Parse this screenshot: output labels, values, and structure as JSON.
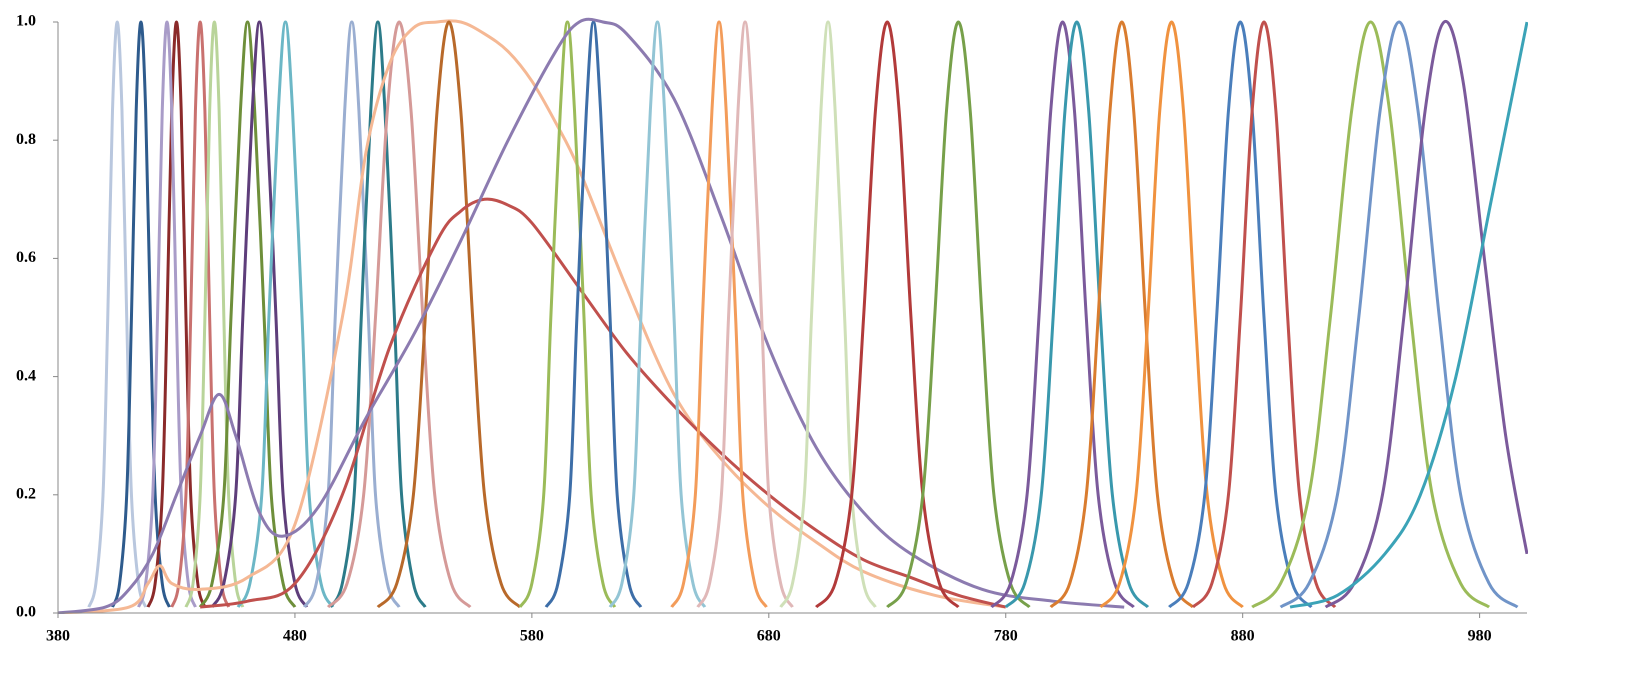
{
  "chart_data": {
    "type": "line",
    "xlim": [
      380,
      1000
    ],
    "ylim": [
      0,
      1
    ],
    "xticks": [
      380,
      480,
      580,
      680,
      780,
      880,
      980
    ],
    "yticks": [
      {
        "value": 0,
        "label": "0.0"
      },
      0.2,
      0.4,
      0.6,
      0.8,
      {
        "value": 1,
        "label": "1.0"
      }
    ],
    "series": [
      {
        "color": "#b9c7de",
        "x": [
          393,
          396,
          399,
          401,
          403,
          405,
          407,
          409,
          411,
          414,
          417
        ],
        "values": [
          0.01,
          0.05,
          0.2,
          0.5,
          0.85,
          1,
          0.85,
          0.5,
          0.2,
          0.05,
          0.01
        ]
      },
      {
        "color": "#2e5b8d",
        "x": [
          403,
          406,
          409,
          411,
          413,
          415,
          417,
          419,
          421,
          424,
          427
        ],
        "values": [
          0.01,
          0.05,
          0.2,
          0.5,
          0.85,
          1,
          0.85,
          0.5,
          0.2,
          0.05,
          0.01
        ]
      },
      {
        "color": "#8b2a2a",
        "x": [
          418,
          421,
          424,
          426,
          428,
          430,
          432,
          434,
          436,
          439,
          442
        ],
        "values": [
          0.01,
          0.05,
          0.2,
          0.5,
          0.85,
          1,
          0.85,
          0.5,
          0.2,
          0.05,
          0.01
        ]
      },
      {
        "color": "#a99cc8",
        "x": [
          414,
          417,
          420,
          422,
          424,
          426,
          428,
          430,
          432,
          435,
          438
        ],
        "values": [
          0.01,
          0.05,
          0.2,
          0.5,
          0.85,
          1,
          0.85,
          0.5,
          0.2,
          0.05,
          0.01
        ]
      },
      {
        "color": "#c9716f",
        "x": [
          428,
          431,
          434,
          436,
          438,
          440,
          442,
          444,
          446,
          449,
          452
        ],
        "values": [
          0.01,
          0.05,
          0.2,
          0.5,
          0.85,
          1,
          0.85,
          0.5,
          0.2,
          0.05,
          0.01
        ]
      },
      {
        "color": "#b9d49a",
        "x": [
          434,
          437,
          440,
          442,
          444,
          446,
          448,
          450,
          452,
          455,
          458
        ],
        "values": [
          0.01,
          0.05,
          0.2,
          0.5,
          0.85,
          1,
          0.85,
          0.5,
          0.2,
          0.05,
          0.01
        ]
      },
      {
        "color": "#6e8f3a",
        "x": [
          440,
          445,
          450,
          453,
          457,
          460,
          463,
          467,
          470,
          475,
          480
        ],
        "values": [
          0.01,
          0.05,
          0.2,
          0.5,
          0.85,
          1,
          0.85,
          0.5,
          0.2,
          0.05,
          0.01
        ]
      },
      {
        "color": "#5e3e7a",
        "x": [
          445,
          450,
          455,
          458,
          462,
          465,
          468,
          472,
          475,
          480,
          485
        ],
        "values": [
          0.01,
          0.05,
          0.2,
          0.5,
          0.85,
          1,
          0.85,
          0.5,
          0.2,
          0.05,
          0.01
        ]
      },
      {
        "color": "#6cb7c6",
        "x": [
          456,
          461,
          466,
          469,
          473,
          476,
          479,
          483,
          486,
          491,
          496
        ],
        "values": [
          0.01,
          0.05,
          0.2,
          0.5,
          0.85,
          1,
          0.85,
          0.5,
          0.2,
          0.05,
          0.01
        ]
      },
      {
        "color": "#9aaed1",
        "x": [
          484,
          489,
          494,
          497,
          501,
          504,
          507,
          511,
          514,
          519,
          524
        ],
        "values": [
          0.01,
          0.05,
          0.2,
          0.5,
          0.85,
          1,
          0.85,
          0.5,
          0.2,
          0.05,
          0.01
        ]
      },
      {
        "color": "#2c7b89",
        "x": [
          495,
          500,
          505,
          508,
          512,
          515,
          518,
          522,
          525,
          530,
          535
        ],
        "values": [
          0.01,
          0.05,
          0.2,
          0.5,
          0.85,
          1,
          0.85,
          0.5,
          0.2,
          0.05,
          0.01
        ]
      },
      {
        "color": "#d59a98",
        "x": [
          494,
          502,
          509,
          514,
          519,
          524,
          529,
          534,
          539,
          546,
          554
        ],
        "values": [
          0.01,
          0.05,
          0.2,
          0.5,
          0.85,
          1,
          0.85,
          0.5,
          0.2,
          0.05,
          0.01
        ]
      },
      {
        "color": "#f5b894",
        "x": [
          380,
          410,
          418,
          423,
          428,
          440,
          460,
          480,
          500,
          510,
          520,
          530,
          540,
          550,
          560,
          570,
          580,
          590,
          600,
          620,
          640,
          660,
          680,
          700,
          720,
          750,
          780
        ],
        "values": [
          0,
          0.01,
          0.05,
          0.08,
          0.05,
          0.04,
          0.06,
          0.15,
          0.5,
          0.78,
          0.93,
          0.99,
          1,
          1,
          0.98,
          0.95,
          0.9,
          0.83,
          0.75,
          0.55,
          0.37,
          0.26,
          0.18,
          0.12,
          0.07,
          0.03,
          0.01
        ]
      },
      {
        "color": "#b8692a",
        "x": [
          515,
          523,
          530,
          535,
          540,
          545,
          550,
          555,
          560,
          567,
          575
        ],
        "values": [
          0.01,
          0.05,
          0.2,
          0.5,
          0.85,
          1,
          0.85,
          0.5,
          0.2,
          0.05,
          0.01
        ]
      },
      {
        "color": "#c0504d",
        "x": [
          440,
          460,
          480,
          500,
          520,
          540,
          550,
          560,
          570,
          580,
          600,
          620,
          640,
          660,
          680,
          700,
          720,
          740,
          760,
          780
        ],
        "values": [
          0.01,
          0.02,
          0.05,
          0.2,
          0.45,
          0.63,
          0.68,
          0.7,
          0.69,
          0.66,
          0.55,
          0.44,
          0.35,
          0.27,
          0.2,
          0.14,
          0.09,
          0.06,
          0.03,
          0.01
        ]
      },
      {
        "color": "#9bbb59",
        "x": [
          575,
          580,
          585,
          588,
          592,
          595,
          598,
          602,
          605,
          610,
          615
        ],
        "values": [
          0.01,
          0.05,
          0.2,
          0.5,
          0.85,
          1,
          0.85,
          0.5,
          0.2,
          0.05,
          0.01
        ]
      },
      {
        "color": "#3d6ea8",
        "x": [
          586,
          591,
          596,
          599,
          603,
          606,
          609,
          613,
          616,
          621,
          626
        ],
        "values": [
          0.01,
          0.05,
          0.2,
          0.5,
          0.85,
          1,
          0.85,
          0.5,
          0.2,
          0.05,
          0.01
        ]
      },
      {
        "color": "#8c7bb0",
        "x": [
          380,
          400,
          410,
          420,
          430,
          440,
          448,
          455,
          465,
          475,
          490,
          510,
          530,
          550,
          570,
          590,
          600,
          610,
          620,
          640,
          660,
          680,
          700,
          720,
          740,
          770,
          800,
          830
        ],
        "values": [
          0,
          0.01,
          0.04,
          0.1,
          0.2,
          0.3,
          0.37,
          0.3,
          0.17,
          0.13,
          0.18,
          0.33,
          0.47,
          0.63,
          0.8,
          0.95,
          1,
          1,
          0.98,
          0.87,
          0.67,
          0.45,
          0.28,
          0.17,
          0.1,
          0.04,
          0.02,
          0.01
        ]
      },
      {
        "color": "#93c5d5",
        "x": [
          613,
          618,
          623,
          626,
          630,
          633,
          636,
          640,
          643,
          648,
          653
        ],
        "values": [
          0.01,
          0.05,
          0.2,
          0.5,
          0.85,
          1,
          0.85,
          0.5,
          0.2,
          0.05,
          0.01
        ]
      },
      {
        "color": "#f39c5a",
        "x": [
          639,
          644,
          649,
          652,
          656,
          659,
          662,
          666,
          669,
          674,
          679
        ],
        "values": [
          0.01,
          0.05,
          0.2,
          0.5,
          0.85,
          1,
          0.85,
          0.5,
          0.2,
          0.05,
          0.01
        ]
      },
      {
        "color": "#e0b8b8",
        "x": [
          650,
          655,
          660,
          663,
          667,
          670,
          673,
          677,
          680,
          685,
          690
        ],
        "values": [
          0.01,
          0.05,
          0.2,
          0.5,
          0.85,
          1,
          0.85,
          0.5,
          0.2,
          0.05,
          0.01
        ]
      },
      {
        "color": "#cfe0b8",
        "x": [
          685,
          690,
          695,
          698,
          702,
          705,
          708,
          712,
          715,
          720,
          725
        ],
        "values": [
          0.01,
          0.05,
          0.2,
          0.5,
          0.85,
          1,
          0.85,
          0.5,
          0.2,
          0.05,
          0.01
        ]
      },
      {
        "color": "#b23a3a",
        "x": [
          700,
          708,
          715,
          720,
          725,
          730,
          735,
          740,
          745,
          752,
          760
        ],
        "values": [
          0.01,
          0.05,
          0.2,
          0.5,
          0.85,
          1,
          0.85,
          0.5,
          0.2,
          0.05,
          0.01
        ]
      },
      {
        "color": "#77a04a",
        "x": [
          730,
          738,
          745,
          750,
          755,
          760,
          765,
          770,
          775,
          782,
          790
        ],
        "values": [
          0.01,
          0.05,
          0.2,
          0.5,
          0.85,
          1,
          0.85,
          0.5,
          0.2,
          0.05,
          0.01
        ]
      },
      {
        "color": "#7b5a9b",
        "x": [
          774,
          782,
          789,
          794,
          799,
          804,
          809,
          814,
          819,
          826,
          834
        ],
        "values": [
          0.01,
          0.05,
          0.2,
          0.5,
          0.85,
          1,
          0.85,
          0.5,
          0.2,
          0.05,
          0.01
        ]
      },
      {
        "color": "#3998ad",
        "x": [
          780,
          788,
          795,
          800,
          805,
          810,
          815,
          820,
          825,
          832,
          840
        ],
        "values": [
          0.01,
          0.05,
          0.2,
          0.5,
          0.85,
          1,
          0.85,
          0.5,
          0.2,
          0.05,
          0.01
        ]
      },
      {
        "color": "#d97c2f",
        "x": [
          799,
          807,
          814,
          819,
          824,
          829,
          834,
          839,
          844,
          851,
          859
        ],
        "values": [
          0.01,
          0.05,
          0.2,
          0.5,
          0.85,
          1,
          0.85,
          0.5,
          0.2,
          0.05,
          0.01
        ]
      },
      {
        "color": "#f0923f",
        "x": [
          820,
          828,
          835,
          840,
          845,
          850,
          855,
          860,
          865,
          872,
          880
        ],
        "values": [
          0.01,
          0.05,
          0.2,
          0.5,
          0.85,
          1,
          0.85,
          0.5,
          0.2,
          0.05,
          0.01
        ]
      },
      {
        "color": "#4a7ebb",
        "x": [
          849,
          857,
          864,
          869,
          874,
          879,
          884,
          889,
          894,
          901,
          909
        ],
        "values": [
          0.01,
          0.05,
          0.2,
          0.5,
          0.85,
          1,
          0.85,
          0.5,
          0.2,
          0.05,
          0.01
        ]
      },
      {
        "color": "#c0504d",
        "x": [
          859,
          867,
          874,
          879,
          884,
          889,
          894,
          899,
          904,
          911,
          919
        ],
        "values": [
          0.01,
          0.05,
          0.2,
          0.5,
          0.85,
          1,
          0.85,
          0.5,
          0.2,
          0.05,
          0.01
        ]
      },
      {
        "color": "#9bbb59",
        "x": [
          884,
          896,
          908,
          917,
          926,
          934,
          942,
          951,
          960,
          972,
          984
        ],
        "values": [
          0.01,
          0.05,
          0.2,
          0.5,
          0.85,
          1,
          0.85,
          0.5,
          0.2,
          0.05,
          0.01
        ]
      },
      {
        "color": "#7094c8",
        "x": [
          896,
          908,
          920,
          929,
          938,
          946,
          954,
          963,
          972,
          984,
          996
        ],
        "values": [
          0.01,
          0.05,
          0.2,
          0.5,
          0.85,
          1,
          0.85,
          0.5,
          0.2,
          0.05,
          0.01
        ]
      },
      {
        "color": "#7b5a9b",
        "x": [
          915,
          927,
          939,
          948,
          957,
          965,
          973,
          982,
          991,
          1000
        ],
        "values": [
          0.01,
          0.05,
          0.2,
          0.5,
          0.85,
          1,
          0.9,
          0.6,
          0.3,
          0.1
        ]
      },
      {
        "color": "#3ba3b7",
        "x": [
          900,
          920,
          940,
          955,
          970,
          985,
          1000
        ],
        "values": [
          0.01,
          0.03,
          0.1,
          0.2,
          0.4,
          0.7,
          1
        ]
      }
    ]
  }
}
